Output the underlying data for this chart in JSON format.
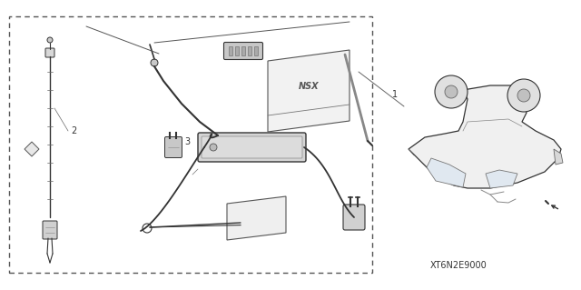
{
  "bg_color": "#ffffff",
  "figure_width": 6.4,
  "figure_height": 3.19,
  "dpi": 100,
  "code_label": "XT6N2E9000",
  "label_color": "#222222"
}
